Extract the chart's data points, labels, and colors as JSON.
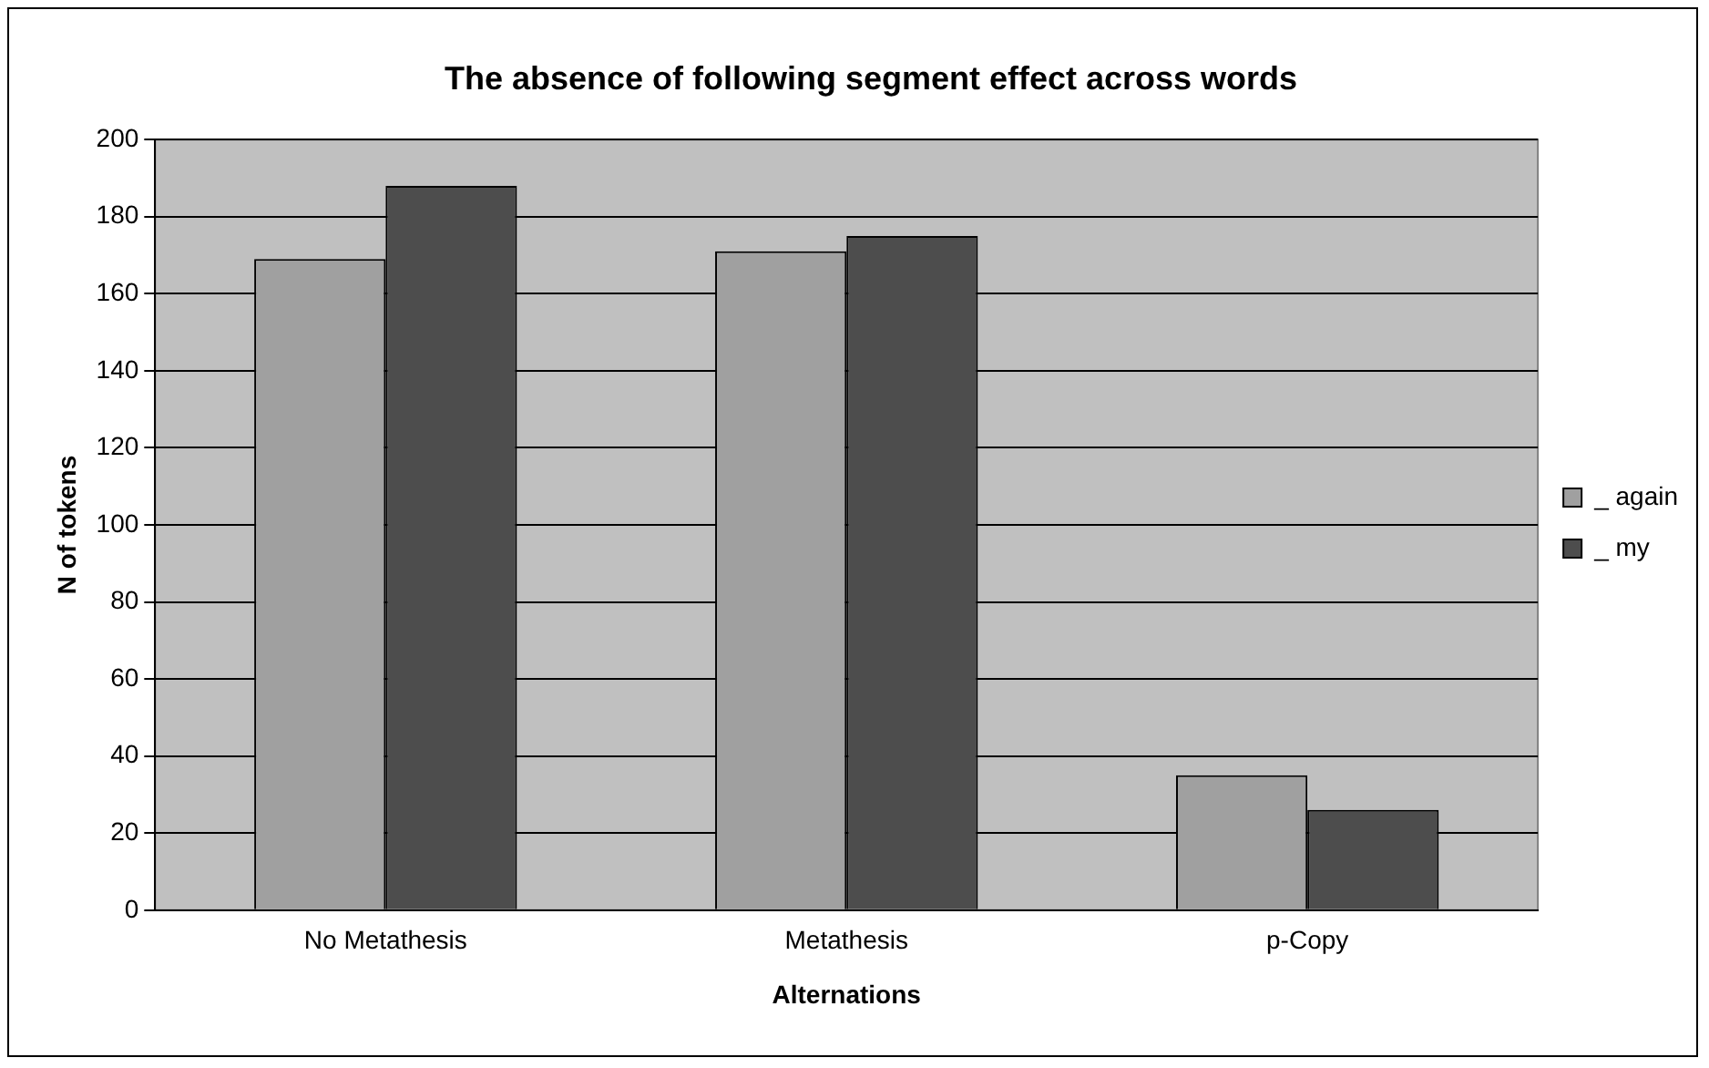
{
  "chart_data": {
    "type": "bar",
    "title": "The absence of following segment effect across words",
    "xlabel": "Alternations",
    "ylabel": "N of tokens",
    "categories": [
      "No Metathesis",
      "Metathesis",
      "p-Copy"
    ],
    "series": [
      {
        "name": "_ again",
        "color": "#a0a0a0",
        "values": [
          169,
          171,
          35
        ]
      },
      {
        "name": "_ my",
        "color": "#4d4d4d",
        "values": [
          188,
          175,
          26
        ]
      }
    ],
    "ylim": [
      0,
      200
    ],
    "yticks": [
      0,
      20,
      40,
      60,
      80,
      100,
      120,
      140,
      160,
      180,
      200
    ],
    "grid": "y",
    "legend": "right"
  }
}
